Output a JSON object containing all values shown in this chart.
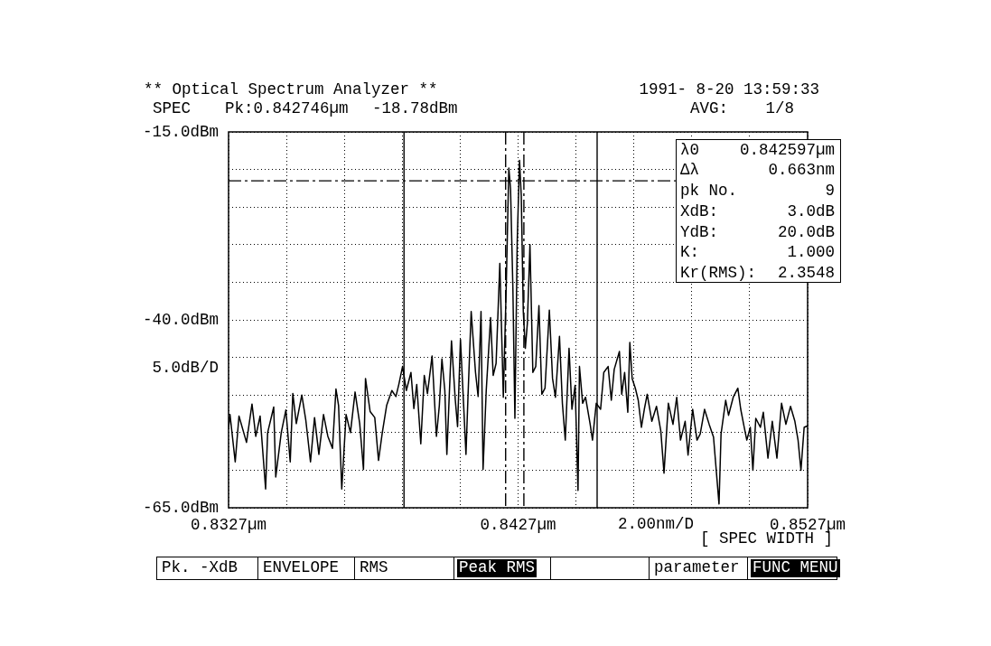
{
  "chart_data": {
    "type": "line",
    "title": "** Optical Spectrum Analyzer **",
    "xlabel": "2.00nm/D",
    "ylabel": "5.0dB/D",
    "annotations": [
      "1991- 8-20 13:59:33",
      "SPEC",
      "Pk:0.842746µm",
      "-18.78dBm",
      "AVG:",
      "1/8",
      "λ0",
      "0.842597µm",
      "Δλ",
      "0.663nm",
      "pk No.",
      "9",
      "XdB:",
      "3.0dB",
      "YdB:",
      "20.0dB",
      "K:",
      "1.000",
      "Kr(RMS):",
      "2.3548",
      "[ SPEC WIDTH ]",
      "Pk. -XdB",
      "ENVELOPE",
      "RMS",
      "Peak RMS",
      "parameter",
      "FUNC MENU"
    ],
    "x": [
      0.8327,
      0.83275,
      0.83293,
      0.83306,
      0.83332,
      0.83351,
      0.83364,
      0.83379,
      0.83398,
      0.83405,
      0.83426,
      0.83433,
      0.83452,
      0.83468,
      0.83483,
      0.83492,
      0.83504,
      0.83523,
      0.83537,
      0.83553,
      0.83567,
      0.83582,
      0.83598,
      0.83613,
      0.83629,
      0.83641,
      0.8365,
      0.83661,
      0.83676,
      0.83691,
      0.83707,
      0.83723,
      0.83736,
      0.83743,
      0.83759,
      0.83775,
      0.83788,
      0.83801,
      0.83816,
      0.83834,
      0.83848,
      0.83858,
      0.83871,
      0.83884,
      0.839,
      0.8391,
      0.8392,
      0.83934,
      0.83946,
      0.83957,
      0.83973,
      0.83988,
      0.83998,
      0.84007,
      0.84017,
      0.84024,
      0.8404,
      0.84053,
      0.84061,
      0.84071,
      0.84082,
      0.8409,
      0.84097,
      0.84108,
      0.84123,
      0.84132,
      0.84142,
      0.84149,
      0.8416,
      0.84175,
      0.84184,
      0.84194,
      0.84207,
      0.84219,
      0.84229,
      0.84238,
      0.84244,
      0.84252,
      0.84259,
      0.84267,
      0.84275,
      0.84281,
      0.84288,
      0.84295,
      0.84302,
      0.84311,
      0.84321,
      0.84331,
      0.84342,
      0.84352,
      0.84363,
      0.84378,
      0.84389,
      0.84399,
      0.84413,
      0.84423,
      0.84433,
      0.84446,
      0.84456,
      0.84467,
      0.84477,
      0.84482,
      0.84493,
      0.84503,
      0.84519,
      0.84527,
      0.8454,
      0.84555,
      0.84566,
      0.84581,
      0.84592,
      0.84602,
      0.8462,
      0.84628,
      0.84638,
      0.84649,
      0.84656,
      0.84664,
      0.84675,
      0.84685,
      0.84696,
      0.84706,
      0.84716,
      0.84732,
      0.84748,
      0.84763,
      0.84774,
      0.84789,
      0.84805,
      0.84818,
      0.84831,
      0.84847,
      0.84857,
      0.84873,
      0.84888,
      0.84899,
      0.84914,
      0.8493,
      0.84945,
      0.84964,
      0.84971,
      0.84987,
      0.84997,
      0.85013,
      0.85029,
      0.85039,
      0.85049,
      0.8506,
      0.85072,
      0.85081,
      0.85091,
      0.85107,
      0.85117,
      0.85133,
      0.85148,
      0.85164,
      0.8518,
      0.85195,
      0.85211,
      0.85226,
      0.85237,
      0.85247,
      0.85258,
      0.8527
    ],
    "values": [
      -54.4,
      -52.6,
      -58.9,
      -52.8,
      -56.3,
      -51.2,
      -55.5,
      -52.8,
      -62.5,
      -55.0,
      -51.6,
      -60.9,
      -55.0,
      -52.0,
      -58.9,
      -49.8,
      -53.8,
      -50.0,
      -53.4,
      -58.9,
      -53.0,
      -57.9,
      -52.6,
      -55.5,
      -57.1,
      -49.2,
      -51.4,
      -62.5,
      -52.6,
      -55.0,
      -49.6,
      -53.8,
      -59.9,
      -47.8,
      -52.2,
      -53.0,
      -58.7,
      -55.0,
      -51.4,
      -49.4,
      -50.2,
      -48.6,
      -46.2,
      -49.4,
      -47.0,
      -51.8,
      -48.6,
      -56.5,
      -47.4,
      -49.8,
      -44.8,
      -55.5,
      -51.4,
      -45.2,
      -49.4,
      -57.9,
      -42.8,
      -50.6,
      -54.2,
      -42.6,
      -51.4,
      -57.9,
      -50.2,
      -38.9,
      -47.0,
      -50.2,
      -38.9,
      -59.9,
      -49.4,
      -39.7,
      -47.4,
      -45.8,
      -32.5,
      -50.3,
      -35.7,
      -19.8,
      -22.6,
      -35.7,
      -53.1,
      -29.6,
      -18.8,
      -23.5,
      -38.9,
      -43.8,
      -40.5,
      -30.0,
      -47.0,
      -46.2,
      -38.1,
      -49.9,
      -49.1,
      -38.7,
      -47.8,
      -50.3,
      -42.2,
      -51.1,
      -56.0,
      -43.8,
      -51.9,
      -48.7,
      -62.7,
      -46.2,
      -51.1,
      -50.3,
      -53.9,
      -56.0,
      -51.1,
      -51.9,
      -47.0,
      -46.2,
      -50.7,
      -46.6,
      -44.2,
      -49.9,
      -47.0,
      -52.3,
      -43.0,
      -47.8,
      -49.1,
      -50.7,
      -54.3,
      -51.9,
      -49.9,
      -53.5,
      -51.5,
      -54.8,
      -60.4,
      -51.1,
      -53.9,
      -50.3,
      -56.0,
      -53.5,
      -58.0,
      -51.9,
      -56.0,
      -55.2,
      -51.9,
      -53.9,
      -55.6,
      -64.5,
      -55.2,
      -50.7,
      -52.7,
      -50.3,
      -49.1,
      -51.9,
      -53.9,
      -56.0,
      -54.3,
      -60.0,
      -53.1,
      -54.3,
      -52.3,
      -58.4,
      -53.5,
      -58.4,
      -51.1,
      -53.9,
      -51.5,
      -53.5,
      -56.0,
      -60.0,
      -54.3,
      -54.1
    ],
    "color": "#000000",
    "xlim": [
      0.8327,
      0.8527
    ],
    "xticks": [
      {
        "value": 0.8327,
        "label": "0.8327µm"
      },
      {
        "value": 0.8347,
        "label": null
      },
      {
        "value": 0.8367,
        "label": null
      },
      {
        "value": 0.8387,
        "label": null
      },
      {
        "value": 0.8407,
        "label": null
      },
      {
        "value": 0.8427,
        "label": "0.8427µm"
      },
      {
        "value": 0.8447,
        "label": null
      },
      {
        "value": 0.8467,
        "label": null
      },
      {
        "value": 0.8487,
        "label": null
      },
      {
        "value": 0.8507,
        "label": null
      },
      {
        "value": 0.8527,
        "label": "0.8527µm"
      }
    ],
    "ylim": [
      -65,
      -15
    ],
    "yticks": [
      {
        "value": -65,
        "label": "-65.0dBm"
      },
      {
        "value": -60,
        "label": null
      },
      {
        "value": -55,
        "label": null
      },
      {
        "value": -50,
        "label": null
      },
      {
        "value": -45,
        "label": null
      },
      {
        "value": -40,
        "label": "-40.0dBm"
      },
      {
        "value": -35,
        "label": null
      },
      {
        "value": -30,
        "label": null
      },
      {
        "value": -25,
        "label": null
      },
      {
        "value": -20,
        "label": null
      },
      {
        "value": -15,
        "label": "-15.0dBm"
      }
    ],
    "grid": true,
    "ref_lines": [
      {
        "axis": "y",
        "value": -21.5,
        "line_style": "dashed"
      },
      {
        "axis": "x",
        "value": 0.84227,
        "line_style": "dashed"
      },
      {
        "axis": "x",
        "value": 0.8429,
        "line_style": "dashed"
      },
      {
        "axis": "x",
        "value": 0.83876
      },
      {
        "axis": "x",
        "value": 0.84543
      }
    ]
  }
}
